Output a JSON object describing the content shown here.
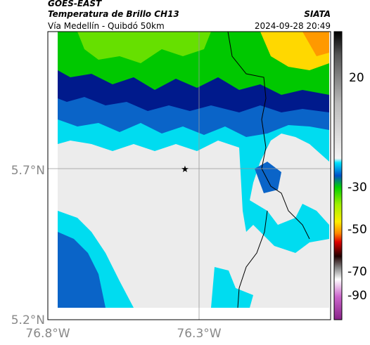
{
  "header": {
    "source": "GOES-EAST",
    "product": "Temperatura de Brillo CH13",
    "agency": "SIATA",
    "route": "Vía Medellín - Quibdó 50km",
    "timestamp": "2024-09-28 20:49"
  },
  "axes": {
    "y_ticks": [
      "5.7°N",
      "5.2°N"
    ],
    "x_ticks": [
      "76.8°W",
      "76.3°W"
    ]
  },
  "colorbar": {
    "ticks": [
      "20",
      "-30",
      "-50",
      "-70",
      "-90"
    ]
  }
}
